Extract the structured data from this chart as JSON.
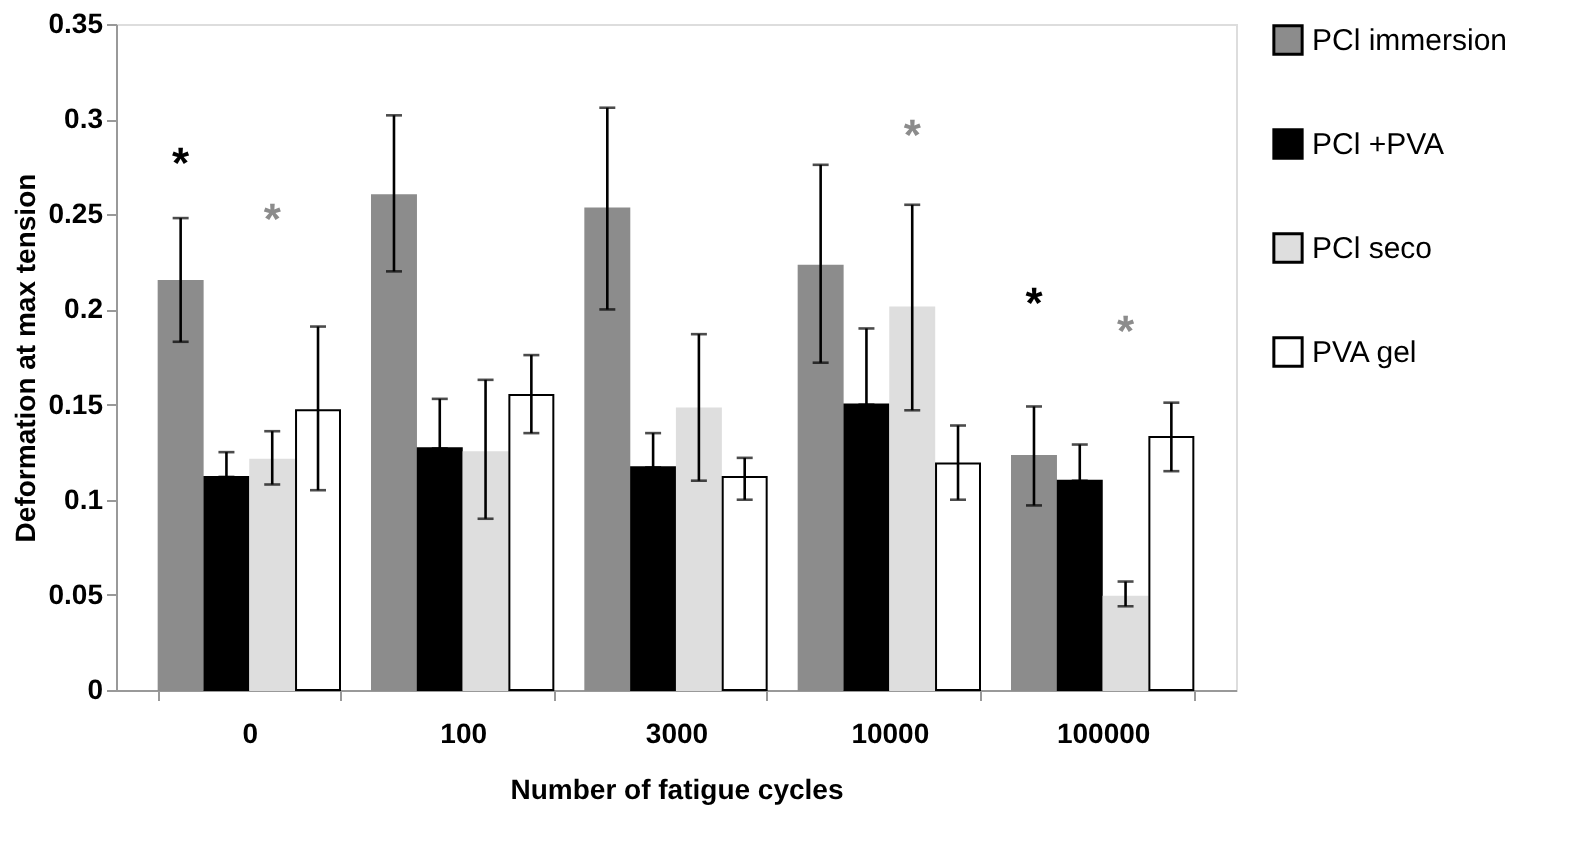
{
  "chart_data": {
    "type": "bar",
    "xlabel": "Number of fatigue cycles",
    "ylabel": "Deformation at max tension",
    "categories": [
      "0",
      "100",
      "3000",
      "10000",
      "100000"
    ],
    "series": [
      {
        "name": "PCl immersion",
        "color": "#8c8c8c",
        "values": [
          0.215,
          0.26,
          0.253,
          0.223,
          0.123
        ],
        "errors": [
          [
            0.183,
            0.248
          ],
          [
            0.22,
            0.302
          ],
          [
            0.2,
            0.306
          ],
          [
            0.172,
            0.276
          ],
          [
            0.097,
            0.149
          ]
        ]
      },
      {
        "name": "PCl +PVA",
        "color": "#000000",
        "values": [
          0.112,
          0.127,
          0.117,
          0.15,
          0.11
        ],
        "errors": [
          [
            0.112,
            0.125
          ],
          [
            0.127,
            0.153
          ],
          [
            0.117,
            0.135
          ],
          [
            0.15,
            0.19
          ],
          [
            0.11,
            0.129
          ]
        ]
      },
      {
        "name": "PCl seco",
        "color": "#dedede",
        "values": [
          0.121,
          0.125,
          0.148,
          0.201,
          0.049
        ],
        "errors": [
          [
            0.108,
            0.136
          ],
          [
            0.09,
            0.163
          ],
          [
            0.11,
            0.187
          ],
          [
            0.147,
            0.255
          ],
          [
            0.044,
            0.057
          ]
        ]
      },
      {
        "name": "PVA gel",
        "color": "#ffffff",
        "values": [
          0.147,
          0.155,
          0.112,
          0.119,
          0.133
        ],
        "errors": [
          [
            0.105,
            0.191
          ],
          [
            0.135,
            0.176
          ],
          [
            0.1,
            0.122
          ],
          [
            0.1,
            0.139
          ],
          [
            0.115,
            0.151
          ]
        ]
      }
    ],
    "ylim": [
      0,
      0.35
    ],
    "yticks": [
      0,
      0.05,
      0.1,
      0.15,
      0.2,
      0.25,
      0.3,
      0.35
    ],
    "grid": false,
    "legend": "right",
    "annotations": [
      "*",
      "*",
      "*",
      "*",
      "*"
    ]
  }
}
